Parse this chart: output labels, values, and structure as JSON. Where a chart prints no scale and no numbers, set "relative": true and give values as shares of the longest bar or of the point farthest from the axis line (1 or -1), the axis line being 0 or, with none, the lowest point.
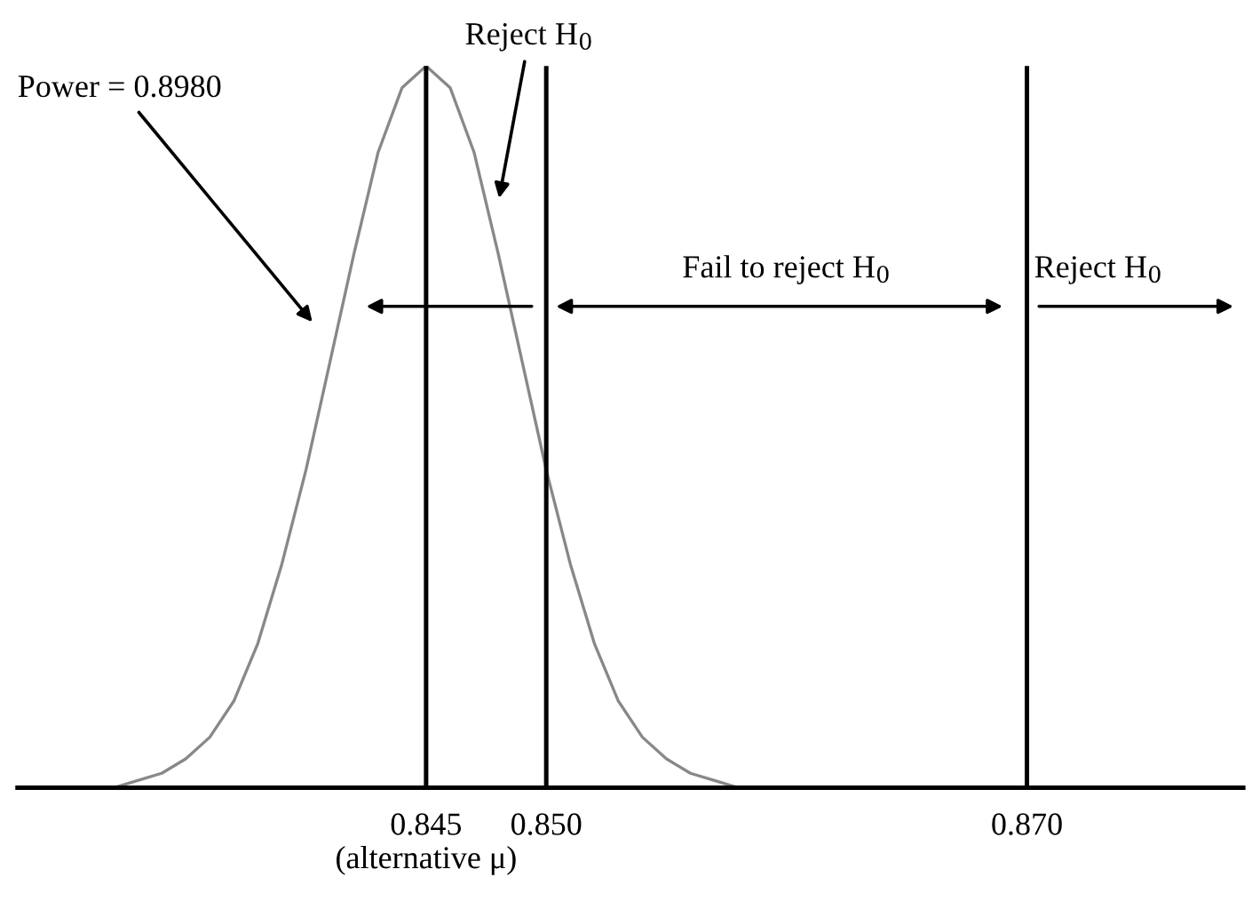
{
  "chart_data": {
    "type": "line",
    "relative": true,
    "color": "#888888",
    "x": [
      0.829,
      0.83,
      0.831,
      0.832,
      0.833,
      0.834,
      0.835,
      0.836,
      0.837,
      0.838,
      0.839,
      0.84,
      0.841,
      0.842,
      0.843,
      0.844,
      0.845,
      0.846,
      0.847,
      0.848,
      0.849,
      0.85,
      0.851,
      0.852,
      0.853,
      0.854,
      0.855,
      0.856,
      0.857,
      0.858,
      0.859,
      0.86,
      0.861
    ],
    "values": [
      0,
      0,
      0,
      0,
      0.01,
      0.02,
      0.04,
      0.07,
      0.12,
      0.2,
      0.31,
      0.44,
      0.59,
      0.74,
      0.88,
      0.97,
      1,
      0.97,
      0.88,
      0.74,
      0.59,
      0.44,
      0.31,
      0.2,
      0.12,
      0.07,
      0.04,
      0.02,
      0.01,
      0,
      0,
      0,
      0
    ],
    "xlim": [
      0.828,
      0.879
    ],
    "xticks": [
      {
        "value": 0.845,
        "label": "0.845\n(alternative μ)"
      },
      {
        "value": 0.85,
        "label": "0.850"
      },
      {
        "value": 0.87,
        "label": "0.870"
      }
    ],
    "ref_lines": [
      {
        "axis": "x",
        "value": 0.845,
        "color": "#000000"
      },
      {
        "axis": "x",
        "value": 0.85,
        "color": "#000000"
      },
      {
        "axis": "x",
        "value": 0.87,
        "color": "#000000"
      }
    ],
    "annotations": [
      "Power = 0.8980",
      "Reject H$_{0}$",
      "Fail to reject H$_{0}$",
      "Reject H$_{0}$"
    ],
    "grid": false
  }
}
